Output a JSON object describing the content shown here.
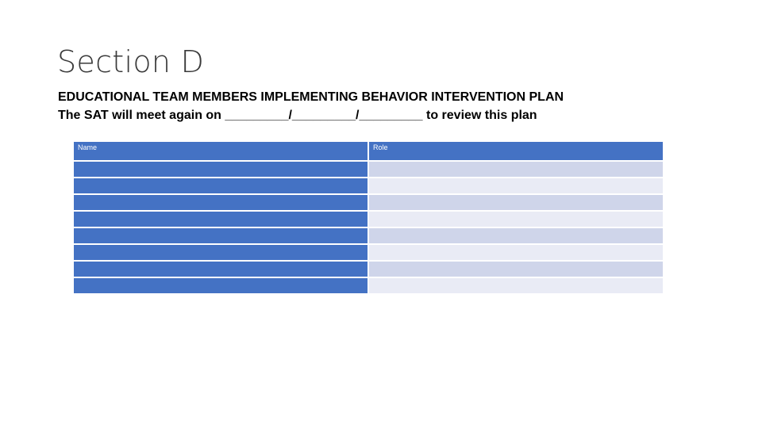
{
  "slide": {
    "title": "Section D",
    "heading": "EDUCATIONAL TEAM MEMBERS IMPLEMENTING BEHAVIOR INTERVENTION PLAN",
    "meeting_line": "The SAT will meet again on _________/_________/_________ to review this plan"
  },
  "table": {
    "columns": [
      "Name",
      "Role"
    ],
    "rows": [
      {
        "name": "",
        "role": ""
      },
      {
        "name": "",
        "role": ""
      },
      {
        "name": "",
        "role": ""
      },
      {
        "name": "",
        "role": ""
      },
      {
        "name": "",
        "role": ""
      },
      {
        "name": "",
        "role": ""
      },
      {
        "name": "",
        "role": ""
      },
      {
        "name": "",
        "role": ""
      }
    ]
  },
  "colors": {
    "header_fill": "#4472c4",
    "name_column_fill": "#4472c4",
    "role_band_dark": "#cfd5ea",
    "role_band_light": "#e9ebf5"
  }
}
